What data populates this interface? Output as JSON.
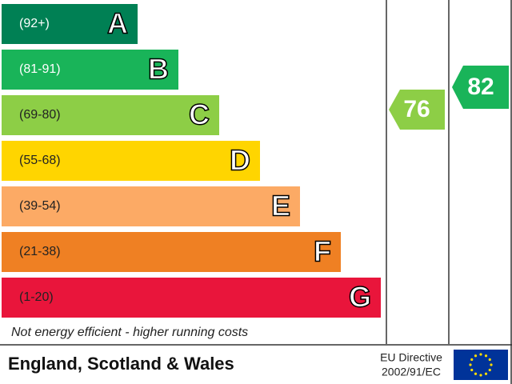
{
  "bands": [
    {
      "range": "(92+)",
      "letter": "A"
    },
    {
      "range": "(81-91)",
      "letter": "B"
    },
    {
      "range": "(69-80)",
      "letter": "C"
    },
    {
      "range": "(55-68)",
      "letter": "D"
    },
    {
      "range": "(39-54)",
      "letter": "E"
    },
    {
      "range": "(21-38)",
      "letter": "F"
    },
    {
      "range": "(1-20)",
      "letter": "G"
    }
  ],
  "current": "76",
  "potential": "82",
  "footer_note": "Not energy efficient - higher running costs",
  "region": "England, Scotland & Wales",
  "directive": [
    "EU Directive",
    "2002/91/EC"
  ]
}
